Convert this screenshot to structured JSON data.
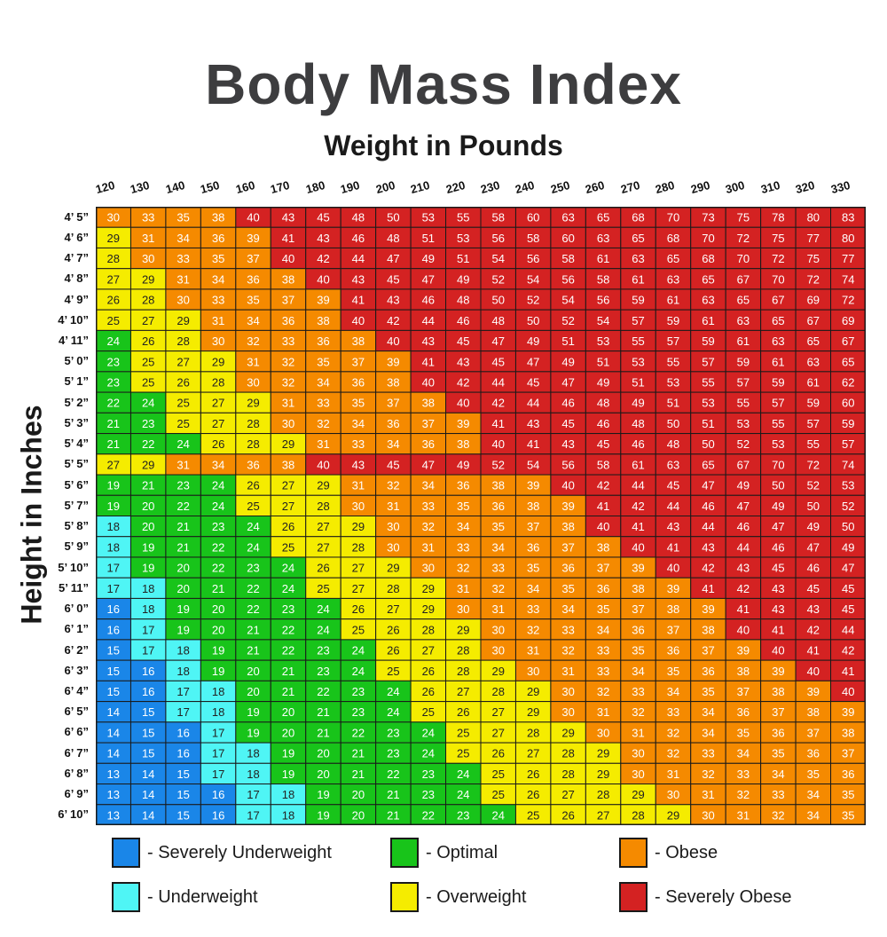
{
  "title": "Body Mass Index",
  "subtitle": "Weight in Pounds",
  "ylabel": "Height in Inches",
  "colors": {
    "severely_underweight": "#1a86e8",
    "underweight": "#4ff5f5",
    "optimal": "#18c41a",
    "overweight": "#f5ec00",
    "obese": "#f58a00",
    "severely_obese": "#d42222"
  },
  "legend": [
    {
      "key": "severely_underweight",
      "label": "- Severely Underweight"
    },
    {
      "key": "optimal",
      "label": "- Optimal"
    },
    {
      "key": "obese",
      "label": "- Obese"
    },
    {
      "key": "underweight",
      "label": "- Underweight"
    },
    {
      "key": "overweight",
      "label": "- Overweight"
    },
    {
      "key": "severely_obese",
      "label": "- Severely Obese"
    }
  ],
  "chart_data": {
    "type": "heatmap",
    "title": "Body Mass Index",
    "xlabel": "Weight in Pounds",
    "ylabel": "Height in Inches",
    "x": [
      "120",
      "130",
      "140",
      "150",
      "160",
      "170",
      "180",
      "190",
      "200",
      "210",
      "220",
      "230",
      "240",
      "250",
      "260",
      "270",
      "280",
      "290",
      "300",
      "310",
      "320",
      "330"
    ],
    "y": [
      "4’ 5”",
      "4’ 6”",
      "4’ 7”",
      "4’ 8”",
      "4’ 9”",
      "4’ 10”",
      "4’ 11”",
      "5’ 0”",
      "5’ 1”",
      "5’ 2”",
      "5’ 3”",
      "5’ 4”",
      "5’ 5”",
      "5’ 6”",
      "5’ 7”",
      "5’ 8”",
      "5’ 9”",
      "5’ 10”",
      "5’ 11”",
      "6’ 0”",
      "6’ 1”",
      "6’ 2”",
      "6’ 3”",
      "6’ 4”",
      "6’ 5”",
      "6’ 6”",
      "6’ 7”",
      "6’ 8”",
      "6’ 9”",
      "6’ 10”"
    ],
    "values": [
      [
        30,
        33,
        35,
        38,
        40,
        43,
        45,
        48,
        50,
        53,
        55,
        58,
        60,
        63,
        65,
        68,
        70,
        73,
        75,
        78,
        80,
        83
      ],
      [
        29,
        31,
        34,
        36,
        39,
        41,
        43,
        46,
        48,
        51,
        53,
        56,
        58,
        60,
        63,
        65,
        68,
        70,
        72,
        75,
        77,
        80
      ],
      [
        28,
        30,
        33,
        35,
        37,
        40,
        42,
        44,
        47,
        49,
        51,
        54,
        56,
        58,
        61,
        63,
        65,
        68,
        70,
        72,
        75,
        77
      ],
      [
        27,
        29,
        31,
        34,
        36,
        38,
        40,
        43,
        45,
        47,
        49,
        52,
        54,
        56,
        58,
        61,
        63,
        65,
        67,
        70,
        72,
        74
      ],
      [
        26,
        28,
        30,
        33,
        35,
        37,
        39,
        41,
        43,
        46,
        48,
        50,
        52,
        54,
        56,
        59,
        61,
        63,
        65,
        67,
        69,
        72
      ],
      [
        25,
        27,
        29,
        31,
        34,
        36,
        38,
        40,
        42,
        44,
        46,
        48,
        50,
        52,
        54,
        57,
        59,
        61,
        63,
        65,
        67,
        69
      ],
      [
        24,
        26,
        28,
        30,
        32,
        33,
        36,
        38,
        40,
        43,
        45,
        47,
        49,
        51,
        53,
        55,
        57,
        59,
        61,
        63,
        65,
        67
      ],
      [
        23,
        25,
        27,
        29,
        31,
        32,
        35,
        37,
        39,
        41,
        43,
        45,
        47,
        49,
        51,
        53,
        55,
        57,
        59,
        61,
        63,
        65
      ],
      [
        23,
        25,
        26,
        28,
        30,
        32,
        34,
        36,
        38,
        40,
        42,
        44,
        45,
        47,
        49,
        51,
        53,
        55,
        57,
        59,
        61,
        62
      ],
      [
        22,
        24,
        25,
        27,
        29,
        31,
        33,
        35,
        37,
        38,
        40,
        42,
        44,
        46,
        48,
        49,
        51,
        53,
        55,
        57,
        59,
        60
      ],
      [
        21,
        23,
        25,
        27,
        28,
        30,
        32,
        34,
        36,
        37,
        39,
        41,
        43,
        45,
        46,
        48,
        50,
        51,
        53,
        55,
        57,
        59
      ],
      [
        21,
        22,
        24,
        26,
        28,
        29,
        31,
        33,
        34,
        36,
        38,
        40,
        41,
        43,
        45,
        46,
        48,
        50,
        52,
        53,
        55,
        57
      ],
      [
        27,
        29,
        31,
        34,
        36,
        38,
        40,
        43,
        45,
        47,
        49,
        52,
        54,
        56,
        58,
        61,
        63,
        65,
        67,
        70,
        72,
        74
      ],
      [
        19,
        21,
        23,
        24,
        26,
        27,
        29,
        31,
        32,
        34,
        36,
        38,
        39,
        40,
        42,
        44,
        45,
        47,
        49,
        50,
        52,
        53
      ],
      [
        19,
        20,
        22,
        24,
        25,
        27,
        28,
        30,
        31,
        33,
        35,
        36,
        38,
        39,
        41,
        42,
        44,
        46,
        47,
        49,
        50,
        52
      ],
      [
        18,
        20,
        21,
        23,
        24,
        26,
        27,
        29,
        30,
        32,
        34,
        35,
        37,
        38,
        40,
        41,
        43,
        44,
        46,
        47,
        49,
        50
      ],
      [
        18,
        19,
        21,
        22,
        24,
        25,
        27,
        28,
        30,
        31,
        33,
        34,
        36,
        37,
        38,
        40,
        41,
        43,
        44,
        46,
        47,
        49
      ],
      [
        17,
        19,
        20,
        22,
        23,
        24,
        26,
        27,
        29,
        30,
        32,
        33,
        35,
        36,
        37,
        39,
        40,
        42,
        43,
        45,
        46,
        47
      ],
      [
        17,
        18,
        20,
        21,
        22,
        24,
        25,
        27,
        28,
        29,
        31,
        32,
        34,
        35,
        36,
        38,
        39,
        41,
        42,
        43,
        45,
        45
      ],
      [
        16,
        18,
        19,
        20,
        22,
        23,
        24,
        26,
        27,
        29,
        30,
        31,
        33,
        34,
        35,
        37,
        38,
        39,
        41,
        43,
        43,
        45
      ],
      [
        16,
        17,
        19,
        20,
        21,
        22,
        24,
        25,
        26,
        28,
        29,
        30,
        32,
        33,
        34,
        36,
        37,
        38,
        40,
        41,
        42,
        44
      ],
      [
        15,
        17,
        18,
        19,
        21,
        22,
        23,
        24,
        26,
        27,
        28,
        30,
        31,
        32,
        33,
        35,
        36,
        37,
        39,
        40,
        41,
        42
      ],
      [
        15,
        16,
        18,
        19,
        20,
        21,
        23,
        24,
        25,
        26,
        28,
        29,
        30,
        31,
        33,
        34,
        35,
        36,
        38,
        39,
        40,
        41
      ],
      [
        15,
        16,
        17,
        18,
        20,
        21,
        22,
        23,
        24,
        26,
        27,
        28,
        29,
        30,
        32,
        33,
        34,
        35,
        37,
        38,
        39,
        40
      ],
      [
        14,
        15,
        17,
        18,
        19,
        20,
        21,
        23,
        24,
        25,
        26,
        27,
        29,
        30,
        31,
        32,
        33,
        34,
        36,
        37,
        38,
        39
      ],
      [
        14,
        15,
        16,
        17,
        19,
        20,
        21,
        22,
        23,
        24,
        25,
        27,
        28,
        29,
        30,
        31,
        32,
        34,
        35,
        36,
        37,
        38
      ],
      [
        14,
        15,
        16,
        17,
        18,
        19,
        20,
        21,
        23,
        24,
        25,
        26,
        27,
        28,
        29,
        30,
        32,
        33,
        34,
        35,
        36,
        37
      ],
      [
        13,
        14,
        15,
        17,
        18,
        19,
        20,
        21,
        22,
        23,
        24,
        25,
        26,
        28,
        29,
        30,
        31,
        32,
        33,
        34,
        35,
        36
      ],
      [
        13,
        14,
        15,
        16,
        17,
        18,
        19,
        20,
        21,
        23,
        24,
        25,
        26,
        27,
        28,
        29,
        30,
        31,
        32,
        33,
        34,
        35
      ],
      [
        13,
        14,
        15,
        16,
        17,
        18,
        19,
        20,
        21,
        22,
        23,
        24,
        25,
        26,
        27,
        28,
        29,
        30,
        31,
        32,
        34,
        35
      ]
    ],
    "category_ranges": {
      "severely_underweight": [
        0,
        16
      ],
      "underweight": [
        17,
        18
      ],
      "optimal": [
        19,
        24
      ],
      "overweight": [
        25,
        29
      ],
      "obese": [
        30,
        39
      ],
      "severely_obese": [
        40,
        100
      ]
    },
    "grid": true,
    "legend": "bottom"
  }
}
